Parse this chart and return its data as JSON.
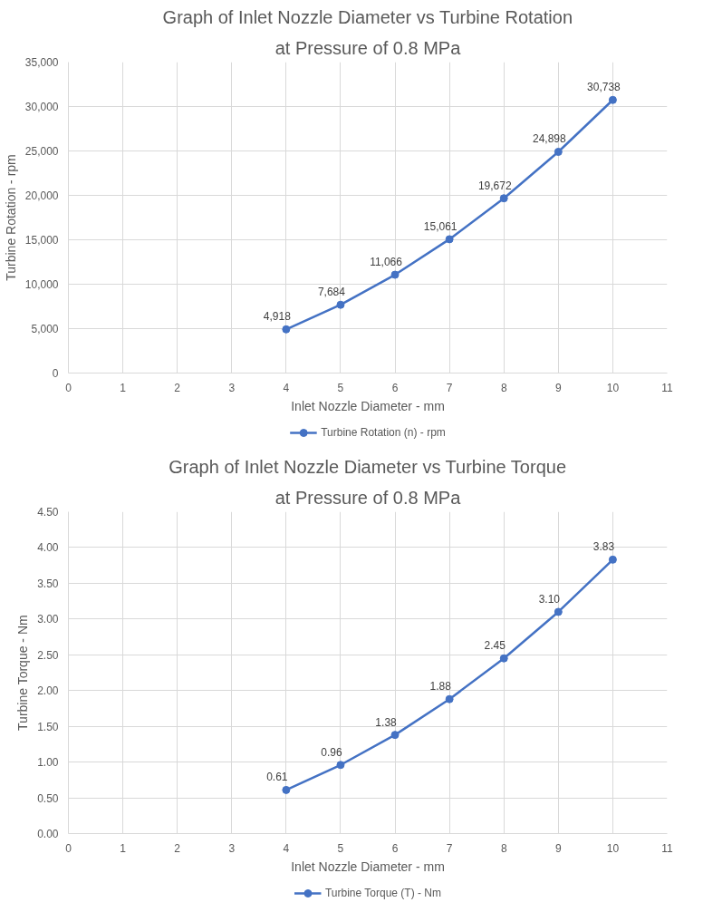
{
  "chart_data": [
    {
      "type": "line",
      "title": "Graph of Inlet Nozzle Diameter vs Turbine Rotation",
      "subtitle": "at Pressure of 0.8 MPa",
      "xlabel": "Inlet Nozzle Diameter - mm",
      "ylabel": "Turbine Rotation - rpm",
      "x": [
        4,
        5,
        6,
        7,
        8,
        9,
        10
      ],
      "series": [
        {
          "name": "Turbine Rotation (n) - rpm",
          "color": "#4472c4",
          "values": [
            4918,
            7684,
            11066,
            15061,
            19672,
            24898,
            30738
          ],
          "value_labels": [
            "4,918",
            "7,684",
            "11,066",
            "15,061",
            "19,672",
            "24,898",
            "30,738"
          ]
        }
      ],
      "xlim": [
        0,
        11
      ],
      "xticks": [
        0,
        1,
        2,
        3,
        4,
        5,
        6,
        7,
        8,
        9,
        10,
        11
      ],
      "ylim": [
        0,
        35000
      ],
      "yticks": [
        0,
        {
          "value": 5000,
          "label": "5,000"
        },
        {
          "value": 10000,
          "label": "10,000"
        },
        {
          "value": 15000,
          "label": "15,000"
        },
        {
          "value": 20000,
          "label": "20,000"
        },
        {
          "value": 25000,
          "label": "25,000"
        },
        {
          "value": 30000,
          "label": "30,000"
        },
        {
          "value": 35000,
          "label": "35,000"
        }
      ],
      "grid": true,
      "legend": "bottom",
      "marker": "circle",
      "line_style": "solid"
    },
    {
      "type": "line",
      "title": "Graph of Inlet Nozzle Diameter vs Turbine Torque",
      "subtitle": "at Pressure of 0.8 MPa",
      "xlabel": "Inlet Nozzle Diameter - mm",
      "ylabel": "Turbine Torque - Nm",
      "x": [
        4,
        5,
        6,
        7,
        8,
        9,
        10
      ],
      "series": [
        {
          "name": "Turbine Torque (T) - Nm",
          "color": "#4472c4",
          "values": [
            0.61,
            0.96,
            1.38,
            1.88,
            2.45,
            3.1,
            3.83
          ],
          "value_labels": [
            "0.61",
            "0.96",
            "1.38",
            "1.88",
            "2.45",
            "3.10",
            "3.83"
          ]
        }
      ],
      "xlim": [
        0,
        11
      ],
      "xticks": [
        0,
        1,
        2,
        3,
        4,
        5,
        6,
        7,
        8,
        9,
        10,
        11
      ],
      "ylim": [
        0,
        4.5
      ],
      "yticks": [
        {
          "value": 0,
          "label": "0.00"
        },
        {
          "value": 0.5,
          "label": "0.50"
        },
        {
          "value": 1,
          "label": "1.00"
        },
        {
          "value": 1.5,
          "label": "1.50"
        },
        {
          "value": 2,
          "label": "2.00"
        },
        {
          "value": 2.5,
          "label": "2.50"
        },
        {
          "value": 3,
          "label": "3.00"
        },
        {
          "value": 3.5,
          "label": "3.50"
        },
        {
          "value": 4,
          "label": "4.00"
        },
        {
          "value": 4.5,
          "label": "4.50"
        }
      ],
      "grid": true,
      "legend": "bottom",
      "marker": "circle",
      "line_style": "solid"
    }
  ]
}
